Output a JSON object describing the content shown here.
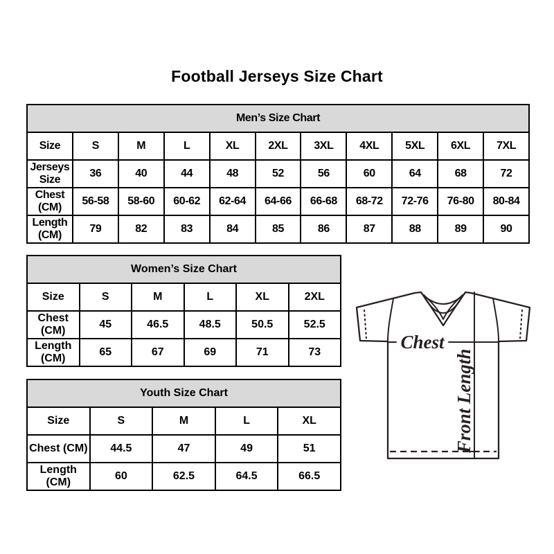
{
  "page": {
    "title": "Football Jerseys Size Chart"
  },
  "tables": {
    "men": {
      "title": "Men’s Size Chart",
      "rows": [
        [
          "Size",
          "S",
          "M",
          "L",
          "XL",
          "2XL",
          "3XL",
          "4XL",
          "5XL",
          "6XL",
          "7XL"
        ],
        [
          "Jerseys Size",
          "36",
          "40",
          "44",
          "48",
          "52",
          "56",
          "60",
          "64",
          "68",
          "72"
        ],
        [
          "Chest (CM)",
          "56-58",
          "58-60",
          "60-62",
          "62-64",
          "64-66",
          "66-68",
          "68-72",
          "72-76",
          "76-80",
          "80-84"
        ],
        [
          "Length (CM)",
          "79",
          "82",
          "83",
          "84",
          "85",
          "86",
          "87",
          "88",
          "89",
          "90"
        ]
      ]
    },
    "women": {
      "title": "Women’s Size Chart",
      "rows": [
        [
          "Size",
          "S",
          "M",
          "L",
          "XL",
          "2XL"
        ],
        [
          "Chest (CM)",
          "45",
          "46.5",
          "48.5",
          "50.5",
          "52.5"
        ],
        [
          "Length (CM)",
          "65",
          "67",
          "69",
          "71",
          "73"
        ]
      ]
    },
    "youth": {
      "title": "Youth Size Chart",
      "rows": [
        [
          "Size",
          "S",
          "M",
          "L",
          "XL"
        ],
        [
          "Chest (CM)",
          "44.5",
          "47",
          "49",
          "51"
        ],
        [
          "Length (CM)",
          "60",
          "62.5",
          "64.5",
          "66.5"
        ]
      ]
    }
  },
  "diagram": {
    "chest_label": "Chest",
    "front_length_label": "Front Length"
  },
  "colors": {
    "header_bg": "#d9d9d9",
    "table_border": "#000000",
    "jersey_line": "#281f23",
    "background": "#ffffff"
  }
}
